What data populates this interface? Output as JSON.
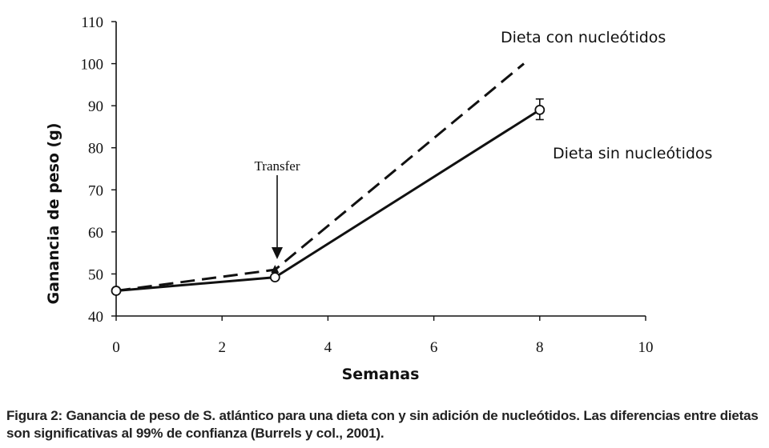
{
  "chart_data": {
    "type": "line",
    "xlabel": "Semanas",
    "ylabel": "Ganancia de peso (g)",
    "xlim": [
      0,
      10
    ],
    "ylim": [
      40,
      110
    ],
    "x_ticks": [
      "0",
      "2",
      "4",
      "6",
      "8",
      "10"
    ],
    "y_ticks": [
      "40",
      "50",
      "60",
      "70",
      "80",
      "90",
      "100",
      "110"
    ],
    "grid": false,
    "series": [
      {
        "name": "Dieta con nucleótidos",
        "style": "dashed",
        "color": "#111111",
        "points": [
          [
            0,
            46
          ],
          [
            3,
            51
          ],
          [
            7.7,
            100
          ]
        ]
      },
      {
        "name": "Dieta sin nucleótidos",
        "style": "solid",
        "color": "#111111",
        "points": [
          [
            0,
            46
          ],
          [
            3,
            49.2
          ],
          [
            8,
            89
          ]
        ],
        "error_bars": [
          [
            8,
            86.7,
            91.6
          ]
        ]
      }
    ],
    "annotations": [
      {
        "text": "Transfer",
        "x": 3,
        "y": 51
      }
    ]
  },
  "caption": "Figura 2: Ganancia de peso de S. atlántico para una dieta con y sin adición de nucleótidos. Las diferencias entre dietas son significativas al 99% de confianza (Burrels y col., 2001)."
}
